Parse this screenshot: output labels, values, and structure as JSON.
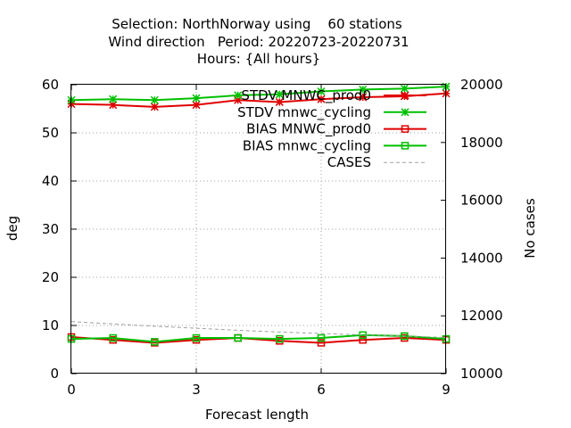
{
  "chart_data": {
    "type": "line",
    "title_lines": [
      "Selection: NorthNorway using    60 stations",
      "Wind direction   Period: 20220723-20220731",
      "Hours: {All hours}"
    ],
    "xlabel": "Forecast length",
    "ylabel": "deg",
    "y2label": "No cases",
    "xlim": [
      0,
      9
    ],
    "ylim": [
      0,
      60
    ],
    "y2lim": [
      10000,
      20000
    ],
    "xticks": [
      0,
      3,
      6,
      9
    ],
    "yticks": [
      0,
      10,
      20,
      30,
      40,
      50,
      60
    ],
    "y2ticks": [
      10000,
      12000,
      14000,
      16000,
      18000,
      20000
    ],
    "grid": true,
    "legend_position": "top-right",
    "x": [
      0,
      1,
      2,
      3,
      4,
      5,
      6,
      7,
      8,
      9
    ],
    "series": [
      {
        "name": "STDV MNWC_prod0",
        "color": "#e00000",
        "marker": "star",
        "axis": "y",
        "values": [
          56.0,
          55.8,
          55.4,
          55.8,
          56.8,
          56.4,
          57.0,
          57.4,
          57.6,
          58.2
        ]
      },
      {
        "name": "STDV mnwc_cycling",
        "color": "#00c000",
        "marker": "star",
        "axis": "y",
        "values": [
          56.8,
          57.0,
          56.8,
          57.2,
          57.8,
          58.0,
          58.6,
          59.0,
          59.2,
          59.6
        ]
      },
      {
        "name": "BIAS MNWC_prod0",
        "color": "#e00000",
        "marker": "square",
        "axis": "y",
        "values": [
          7.6,
          7.0,
          6.4,
          7.0,
          7.4,
          6.8,
          6.4,
          7.0,
          7.4,
          7.0
        ]
      },
      {
        "name": "BIAS mnwc_cycling",
        "color": "#00c000",
        "marker": "square",
        "axis": "y",
        "values": [
          7.2,
          7.4,
          6.6,
          7.4,
          7.4,
          7.2,
          7.4,
          8.0,
          7.8,
          7.2
        ]
      },
      {
        "name": "CASES",
        "color": "#a0a0a0",
        "marker": "none",
        "axis": "y2",
        "values": [
          11800,
          11720,
          11640,
          11570,
          11500,
          11440,
          11390,
          11340,
          11300,
          11250
        ]
      }
    ]
  }
}
